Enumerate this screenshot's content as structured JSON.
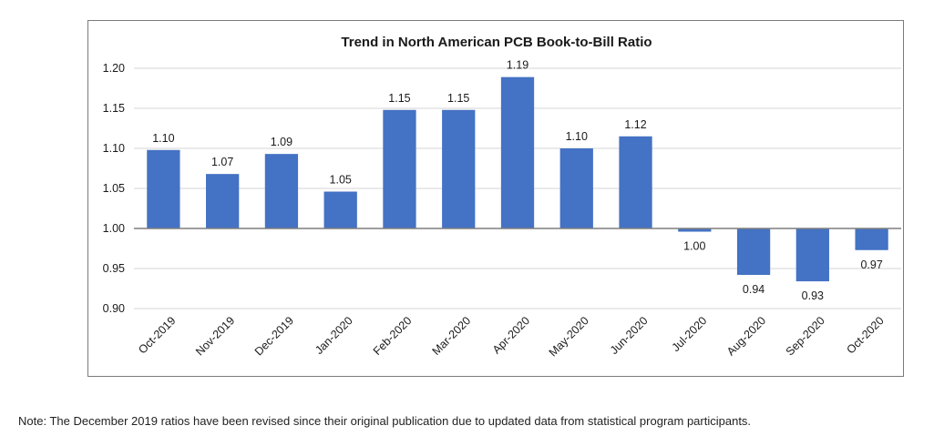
{
  "chart_data": {
    "type": "bar",
    "title": "Trend in North American PCB Book-to-Bill Ratio",
    "xlabel": "",
    "ylabel": "",
    "baseline": 1.0,
    "ylim": [
      0.9,
      1.2
    ],
    "yticks": [
      0.9,
      0.95,
      1.0,
      1.05,
      1.1,
      1.15,
      1.2
    ],
    "ytick_labels": [
      "0.90",
      "0.95",
      "1.00",
      "1.05",
      "1.10",
      "1.15",
      "1.20"
    ],
    "grid": true,
    "bar_color": "#4472c4",
    "categories": [
      "Oct-2019",
      "Nov-2019",
      "Dec-2019",
      "Jan-2020",
      "Feb-2020",
      "Mar-2020",
      "Apr-2020",
      "May-2020",
      "Jun-2020",
      "Jul-2020",
      "Aug-2020",
      "Sep-2020",
      "Oct-2020"
    ],
    "values": [
      1.098,
      1.068,
      1.093,
      1.046,
      1.148,
      1.148,
      1.189,
      1.1,
      1.115,
      0.996,
      0.942,
      0.934,
      0.973
    ],
    "value_labels": [
      "1.10",
      "1.07",
      "1.09",
      "1.05",
      "1.15",
      "1.15",
      "1.19",
      "1.10",
      "1.12",
      "1.00",
      "0.94",
      "0.93",
      "0.97"
    ]
  },
  "note": "Note: The December 2019 ratios have been revised since their original publication due to updated data from statistical program participants."
}
